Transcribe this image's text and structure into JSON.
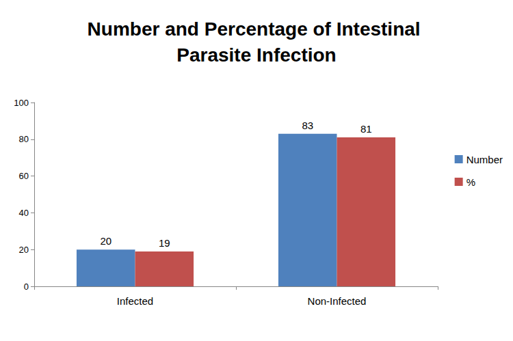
{
  "chart_data": {
    "type": "bar",
    "title": "Number and Percentage of Intestinal Parasite Infection",
    "categories": [
      "Infected",
      "Non-Infected"
    ],
    "series": [
      {
        "name": "Number",
        "color": "#4f81bd",
        "values": [
          20,
          83
        ]
      },
      {
        "name": "%",
        "color": "#c0504d",
        "values": [
          19,
          81
        ]
      }
    ],
    "ylim": [
      0,
      100
    ],
    "yticks": [
      0,
      20,
      40,
      60,
      80,
      100
    ],
    "grid": false,
    "legend": "right",
    "data_labels": true
  }
}
